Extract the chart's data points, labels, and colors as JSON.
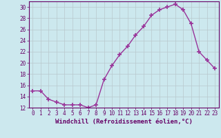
{
  "x": [
    0,
    1,
    2,
    3,
    4,
    5,
    6,
    7,
    8,
    9,
    10,
    11,
    12,
    13,
    14,
    15,
    16,
    17,
    18,
    19,
    20,
    21,
    22,
    23
  ],
  "y": [
    15,
    15,
    13.5,
    13,
    12.5,
    12.5,
    12.5,
    12,
    12.5,
    17,
    19.5,
    21.5,
    23,
    25,
    26.5,
    28.5,
    29.5,
    30,
    30.5,
    29.5,
    27,
    22,
    20.5,
    19
  ],
  "line_color": "#993399",
  "marker": "+",
  "marker_size": 4,
  "bg_color": "#cce8ee",
  "grid_color": "#b8c8cc",
  "xlabel": "Windchill (Refroidissement éolien,°C)",
  "xlabel_color": "#660066",
  "tick_color": "#660066",
  "spine_color": "#660066",
  "ylim": [
    12,
    31
  ],
  "xlim": [
    -0.5,
    23.5
  ],
  "yticks": [
    12,
    14,
    16,
    18,
    20,
    22,
    24,
    26,
    28,
    30
  ],
  "xticks": [
    0,
    1,
    2,
    3,
    4,
    5,
    6,
    7,
    8,
    9,
    10,
    11,
    12,
    13,
    14,
    15,
    16,
    17,
    18,
    19,
    20,
    21,
    22,
    23
  ],
  "xlabel_fontsize": 6.5,
  "tick_fontsize": 5.5,
  "line_width": 1.0,
  "marker_linewidth": 1.2
}
